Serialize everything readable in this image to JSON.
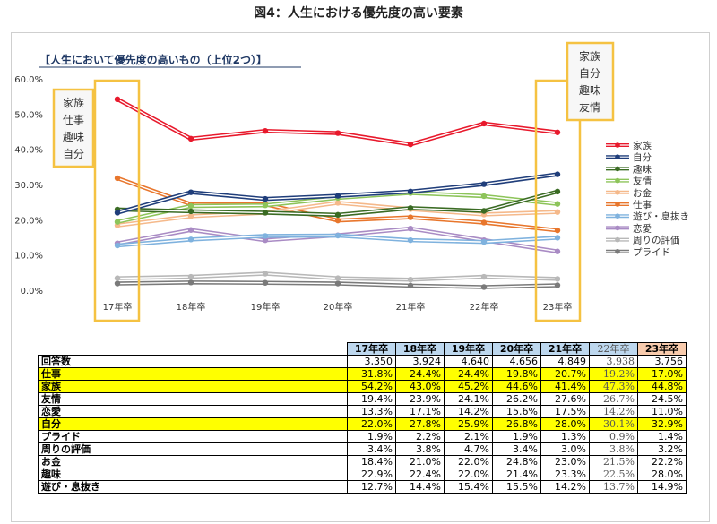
{
  "figure_title": "図4：人生における優先度の高い要素",
  "chart_data": {
    "type": "line",
    "title": "【人生において優先度の高いもの（上位2つ）】",
    "categories": [
      "17年卒",
      "18年卒",
      "19年卒",
      "20年卒",
      "21年卒",
      "22年卒",
      "23年卒"
    ],
    "y_ticks": [
      "60.0%",
      "50.0%",
      "40.0%",
      "30.0%",
      "20.0%",
      "10.0%",
      "0.0%"
    ],
    "ylim": [
      0,
      60
    ],
    "legend_position": "right",
    "callout_left": [
      "家族",
      "仕事",
      "趣味",
      "自分"
    ],
    "callout_right": [
      "家族",
      "自分",
      "趣味",
      "友情"
    ],
    "series": [
      {
        "name": "家族",
        "color": "#e8192c",
        "values": [
          54.2,
          43.0,
          45.2,
          44.6,
          41.4,
          47.3,
          44.8
        ]
      },
      {
        "name": "自分",
        "color": "#1f3d7a",
        "values": [
          22.0,
          27.8,
          25.9,
          26.8,
          28.0,
          30.1,
          32.9
        ]
      },
      {
        "name": "趣味",
        "color": "#3a6b23",
        "values": [
          22.9,
          22.4,
          22.0,
          21.4,
          23.3,
          22.5,
          28.0
        ]
      },
      {
        "name": "友情",
        "color": "#8dc45a",
        "values": [
          19.4,
          23.9,
          24.1,
          26.2,
          27.6,
          26.7,
          24.5
        ]
      },
      {
        "name": "お金",
        "color": "#f5b98b",
        "values": [
          18.4,
          21.0,
          22.0,
          24.8,
          23.0,
          21.5,
          22.2
        ]
      },
      {
        "name": "仕事",
        "color": "#e8762c",
        "values": [
          31.8,
          24.4,
          24.4,
          19.8,
          20.7,
          19.2,
          17.0
        ]
      },
      {
        "name": "遊び・息抜き",
        "color": "#7fb2de",
        "values": [
          12.7,
          14.4,
          15.4,
          15.5,
          14.2,
          13.7,
          14.9
        ]
      },
      {
        "name": "恋愛",
        "color": "#a98bc4",
        "values": [
          13.3,
          17.1,
          14.2,
          15.6,
          17.5,
          14.2,
          11.0
        ]
      },
      {
        "name": "周りの評価",
        "color": "#b8b8b8",
        "values": [
          3.4,
          3.8,
          4.7,
          3.4,
          3.0,
          3.8,
          3.2
        ]
      },
      {
        "name": "プライド",
        "color": "#7a7a7a",
        "values": [
          1.9,
          2.2,
          2.1,
          1.9,
          1.3,
          0.9,
          1.4
        ]
      }
    ]
  },
  "table": {
    "headers": [
      "17年卒",
      "18年卒",
      "19年卒",
      "20年卒",
      "21年卒",
      "22年卒",
      "23年卒"
    ],
    "rows": [
      {
        "label": "回答数",
        "values": [
          "3,350",
          "3,924",
          "4,640",
          "4,656",
          "4,849",
          "3,938",
          "3,756"
        ],
        "hl": false
      },
      {
        "label": "仕事",
        "values": [
          "31.8%",
          "24.4%",
          "24.4%",
          "19.8%",
          "20.7%",
          "19.2%",
          "17.0%"
        ],
        "hl": true
      },
      {
        "label": "家族",
        "values": [
          "54.2%",
          "43.0%",
          "45.2%",
          "44.6%",
          "41.4%",
          "47.3%",
          "44.8%"
        ],
        "hl": true
      },
      {
        "label": "友情",
        "values": [
          "19.4%",
          "23.9%",
          "24.1%",
          "26.2%",
          "27.6%",
          "26.7%",
          "24.5%"
        ],
        "hl": false
      },
      {
        "label": "恋愛",
        "values": [
          "13.3%",
          "17.1%",
          "14.2%",
          "15.6%",
          "17.5%",
          "14.2%",
          "11.0%"
        ],
        "hl": false
      },
      {
        "label": "自分",
        "values": [
          "22.0%",
          "27.8%",
          "25.9%",
          "26.8%",
          "28.0%",
          "30.1%",
          "32.9%"
        ],
        "hl": true
      },
      {
        "label": "プライド",
        "values": [
          "1.9%",
          "2.2%",
          "2.1%",
          "1.9%",
          "1.3%",
          "0.9%",
          "1.4%"
        ],
        "hl": false
      },
      {
        "label": "周りの評価",
        "values": [
          "3.4%",
          "3.8%",
          "4.7%",
          "3.4%",
          "3.0%",
          "3.8%",
          "3.2%"
        ],
        "hl": false
      },
      {
        "label": "お金",
        "values": [
          "18.4%",
          "21.0%",
          "22.0%",
          "24.8%",
          "23.0%",
          "21.5%",
          "22.2%"
        ],
        "hl": false
      },
      {
        "label": "趣味",
        "values": [
          "22.9%",
          "22.4%",
          "22.0%",
          "21.4%",
          "23.3%",
          "22.5%",
          "28.0%"
        ],
        "hl": false
      },
      {
        "label": "遊び・息抜き",
        "values": [
          "12.7%",
          "14.4%",
          "15.4%",
          "15.5%",
          "14.2%",
          "13.7%",
          "14.9%"
        ],
        "hl": false
      }
    ]
  }
}
